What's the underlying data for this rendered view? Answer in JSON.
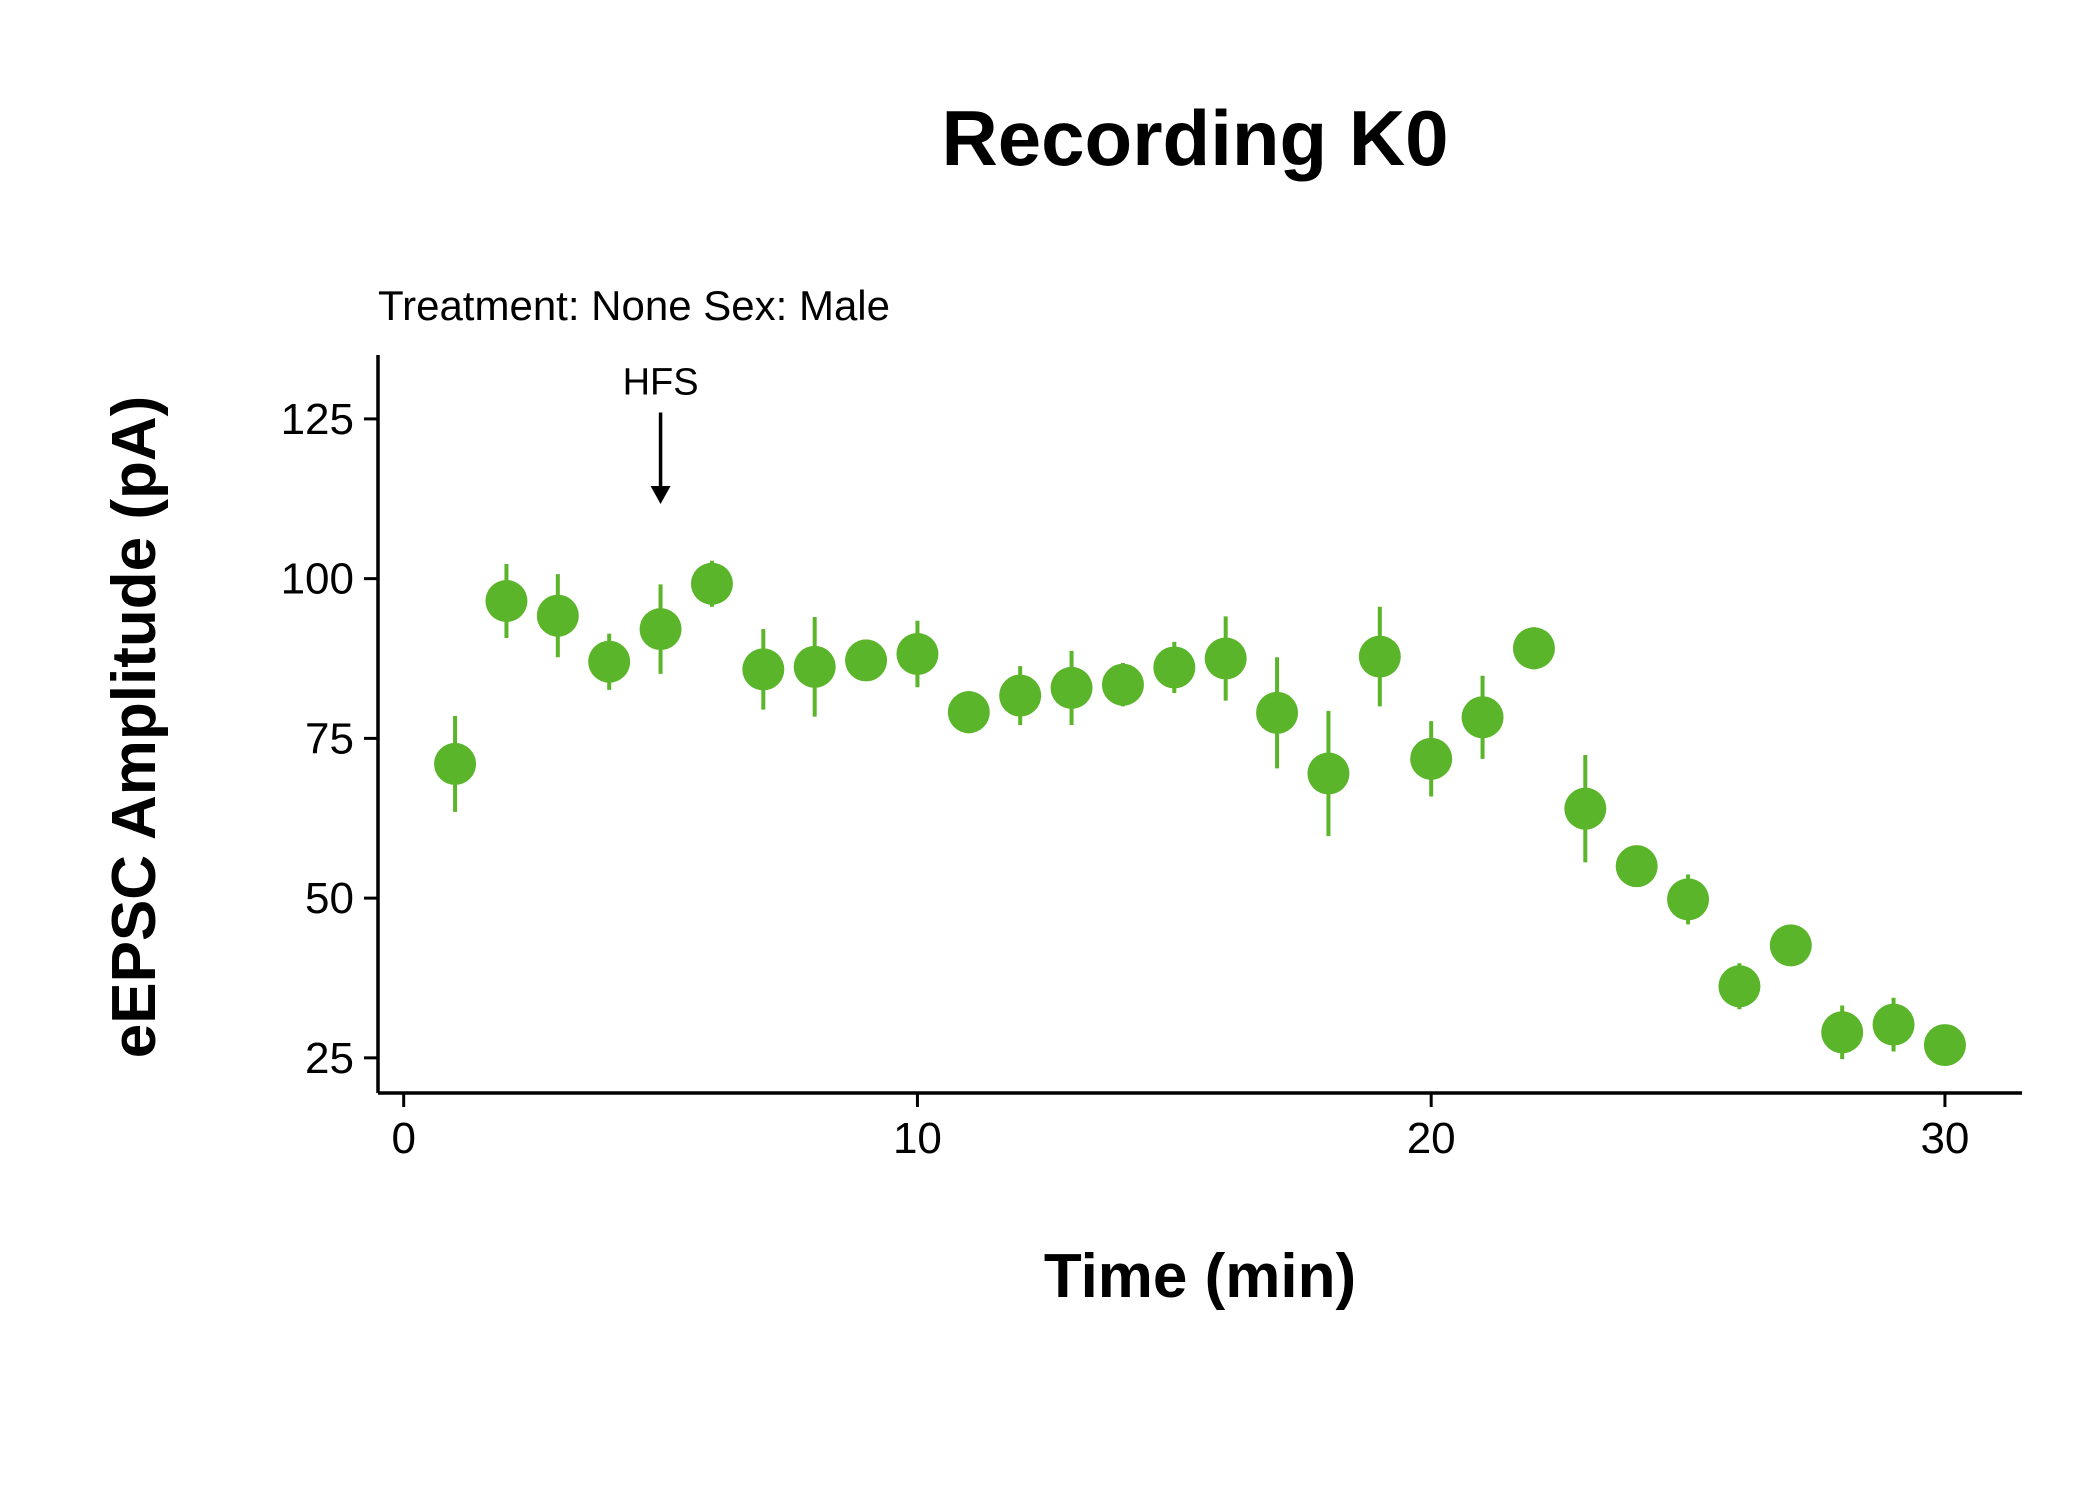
{
  "chart_data": {
    "type": "scatter",
    "title": "Recording K0",
    "subtitle": "Treatment: None  Sex: Male",
    "xlabel": "Time (min)",
    "ylabel": "eEPSC Amplitude (pA)",
    "xlim": [
      -0.5,
      31.5
    ],
    "ylim": [
      19.5,
      135
    ],
    "x_ticks": [
      0,
      10,
      20,
      30
    ],
    "y_ticks": [
      25,
      50,
      75,
      100,
      125
    ],
    "x_tick_labels": [
      "0",
      "10",
      "20",
      "30"
    ],
    "y_tick_labels": [
      "25",
      "50",
      "75",
      "100",
      "125"
    ],
    "grid": false,
    "legend": "none",
    "point_color": "#5bb52b",
    "annotation": {
      "label": "HFS",
      "x": 5,
      "y_arrow_start": 126,
      "y_arrow_end": 112
    },
    "series": [
      {
        "x": [
          1,
          2,
          3,
          4,
          5,
          6,
          7,
          8,
          9,
          10,
          11,
          12,
          13,
          14,
          15,
          16,
          17,
          18,
          19,
          20,
          21,
          22,
          23,
          24,
          25,
          26,
          27,
          28,
          29,
          30
        ],
        "y": [
          71.0,
          96.5,
          94.2,
          87.0,
          92.1,
          99.2,
          85.8,
          86.2,
          87.2,
          88.2,
          79.1,
          81.7,
          82.9,
          83.4,
          86.1,
          87.5,
          79.0,
          69.5,
          87.8,
          71.8,
          78.3,
          89.1,
          64.0,
          55.0,
          49.8,
          36.2,
          42.6,
          29.0,
          30.2,
          27.0
        ],
        "err": [
          7.5,
          5.8,
          6.5,
          4.4,
          7.0,
          3.6,
          6.3,
          7.8,
          2.9,
          5.2,
          3.3,
          4.6,
          5.8,
          3.4,
          4.0,
          6.6,
          8.7,
          9.8,
          7.8,
          5.9,
          6.5,
          3.3,
          8.4,
          1.8,
          3.9,
          3.6,
          1.8,
          4.2,
          4.2,
          2.2
        ]
      }
    ]
  }
}
